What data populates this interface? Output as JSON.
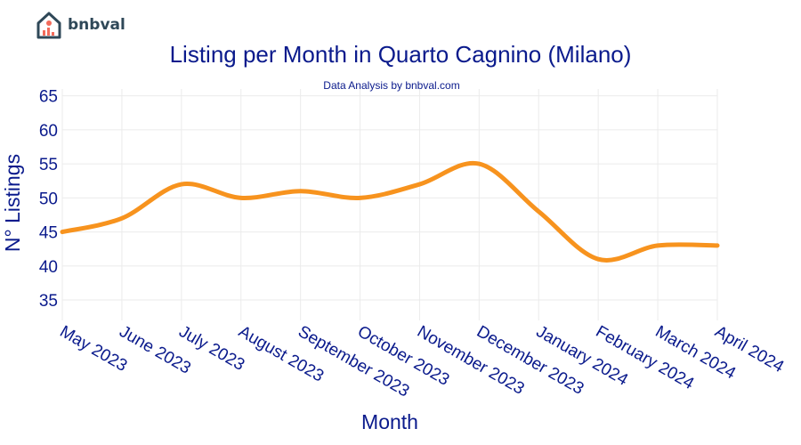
{
  "logo": {
    "brand": "bnbval"
  },
  "chart_data": {
    "type": "line",
    "title": "Listing per Month in Quarto Cagnino (Milano)",
    "subtitle": "Data Analysis by bnbval.com",
    "xlabel": "Month",
    "ylabel": "N° Listings",
    "categories": [
      "May 2023",
      "June 2023",
      "July 2023",
      "August 2023",
      "September 2023",
      "October 2023",
      "November 2023",
      "December 2023",
      "January 2024",
      "February 2024",
      "March 2024",
      "April 2024"
    ],
    "series": [
      {
        "values": [
          45,
          47,
          52,
          50,
          51,
          50,
          52,
          55,
          48,
          41,
          43,
          43
        ]
      }
    ],
    "yticks": [
      35,
      40,
      45,
      50,
      55,
      60,
      65
    ],
    "ylim": [
      32,
      66
    ],
    "grid": true,
    "colors": {
      "line": "#f7931e",
      "text": "#0a1a8c",
      "grid": "#ebebeb"
    }
  }
}
